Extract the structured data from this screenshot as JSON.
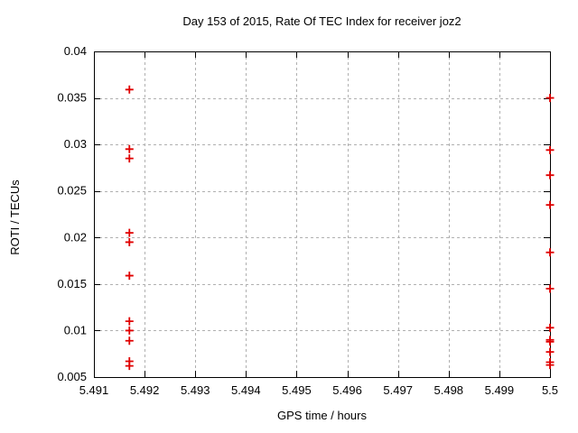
{
  "window": {
    "background": "#ffffff"
  },
  "chart_data": {
    "type": "scatter",
    "title": "Day 153 of 2015, Rate Of TEC Index for receiver joz2",
    "xlabel": "GPS time / hours",
    "ylabel": "ROTI / TECUs",
    "xlim": [
      5.491,
      5.5
    ],
    "ylim": [
      0.005,
      0.04
    ],
    "xticks": [
      5.491,
      5.492,
      5.493,
      5.494,
      5.495,
      5.496,
      5.497,
      5.498,
      5.499,
      5.5
    ],
    "xtick_labels": [
      "5.491",
      "5.492",
      "5.493",
      "5.494",
      "5.495",
      "5.496",
      "5.497",
      "5.498",
      "5.499",
      "5.5"
    ],
    "yticks": [
      0.005,
      0.01,
      0.015,
      0.02,
      0.025,
      0.03,
      0.035,
      0.04
    ],
    "ytick_labels": [
      "0.005",
      "0.01",
      "0.015",
      "0.02",
      "0.025",
      "0.03",
      "0.035",
      "0.04"
    ],
    "grid": true,
    "legend": "none",
    "marker": "plus",
    "colors": {
      "marker": "#e00000",
      "grid": "#b0b0b0",
      "axis": "#000000",
      "text": "#000000"
    },
    "series": [
      {
        "name": "ROTI",
        "points": [
          [
            5.4917,
            0.0359
          ],
          [
            5.4917,
            0.0295
          ],
          [
            5.4917,
            0.0285
          ],
          [
            5.4917,
            0.0205
          ],
          [
            5.4917,
            0.0195
          ],
          [
            5.4917,
            0.0159
          ],
          [
            5.4917,
            0.011
          ],
          [
            5.4917,
            0.01
          ],
          [
            5.4917,
            0.0089
          ],
          [
            5.4917,
            0.0067
          ],
          [
            5.4917,
            0.0062
          ],
          [
            5.5,
            0.035
          ],
          [
            5.5,
            0.0294
          ],
          [
            5.5,
            0.0267
          ],
          [
            5.5,
            0.0235
          ],
          [
            5.5,
            0.0184
          ],
          [
            5.5,
            0.0145
          ],
          [
            5.5,
            0.0103
          ],
          [
            5.5,
            0.009
          ],
          [
            5.5,
            0.0088
          ],
          [
            5.5,
            0.0077
          ],
          [
            5.5,
            0.0066
          ],
          [
            5.5,
            0.0063
          ]
        ]
      }
    ]
  }
}
